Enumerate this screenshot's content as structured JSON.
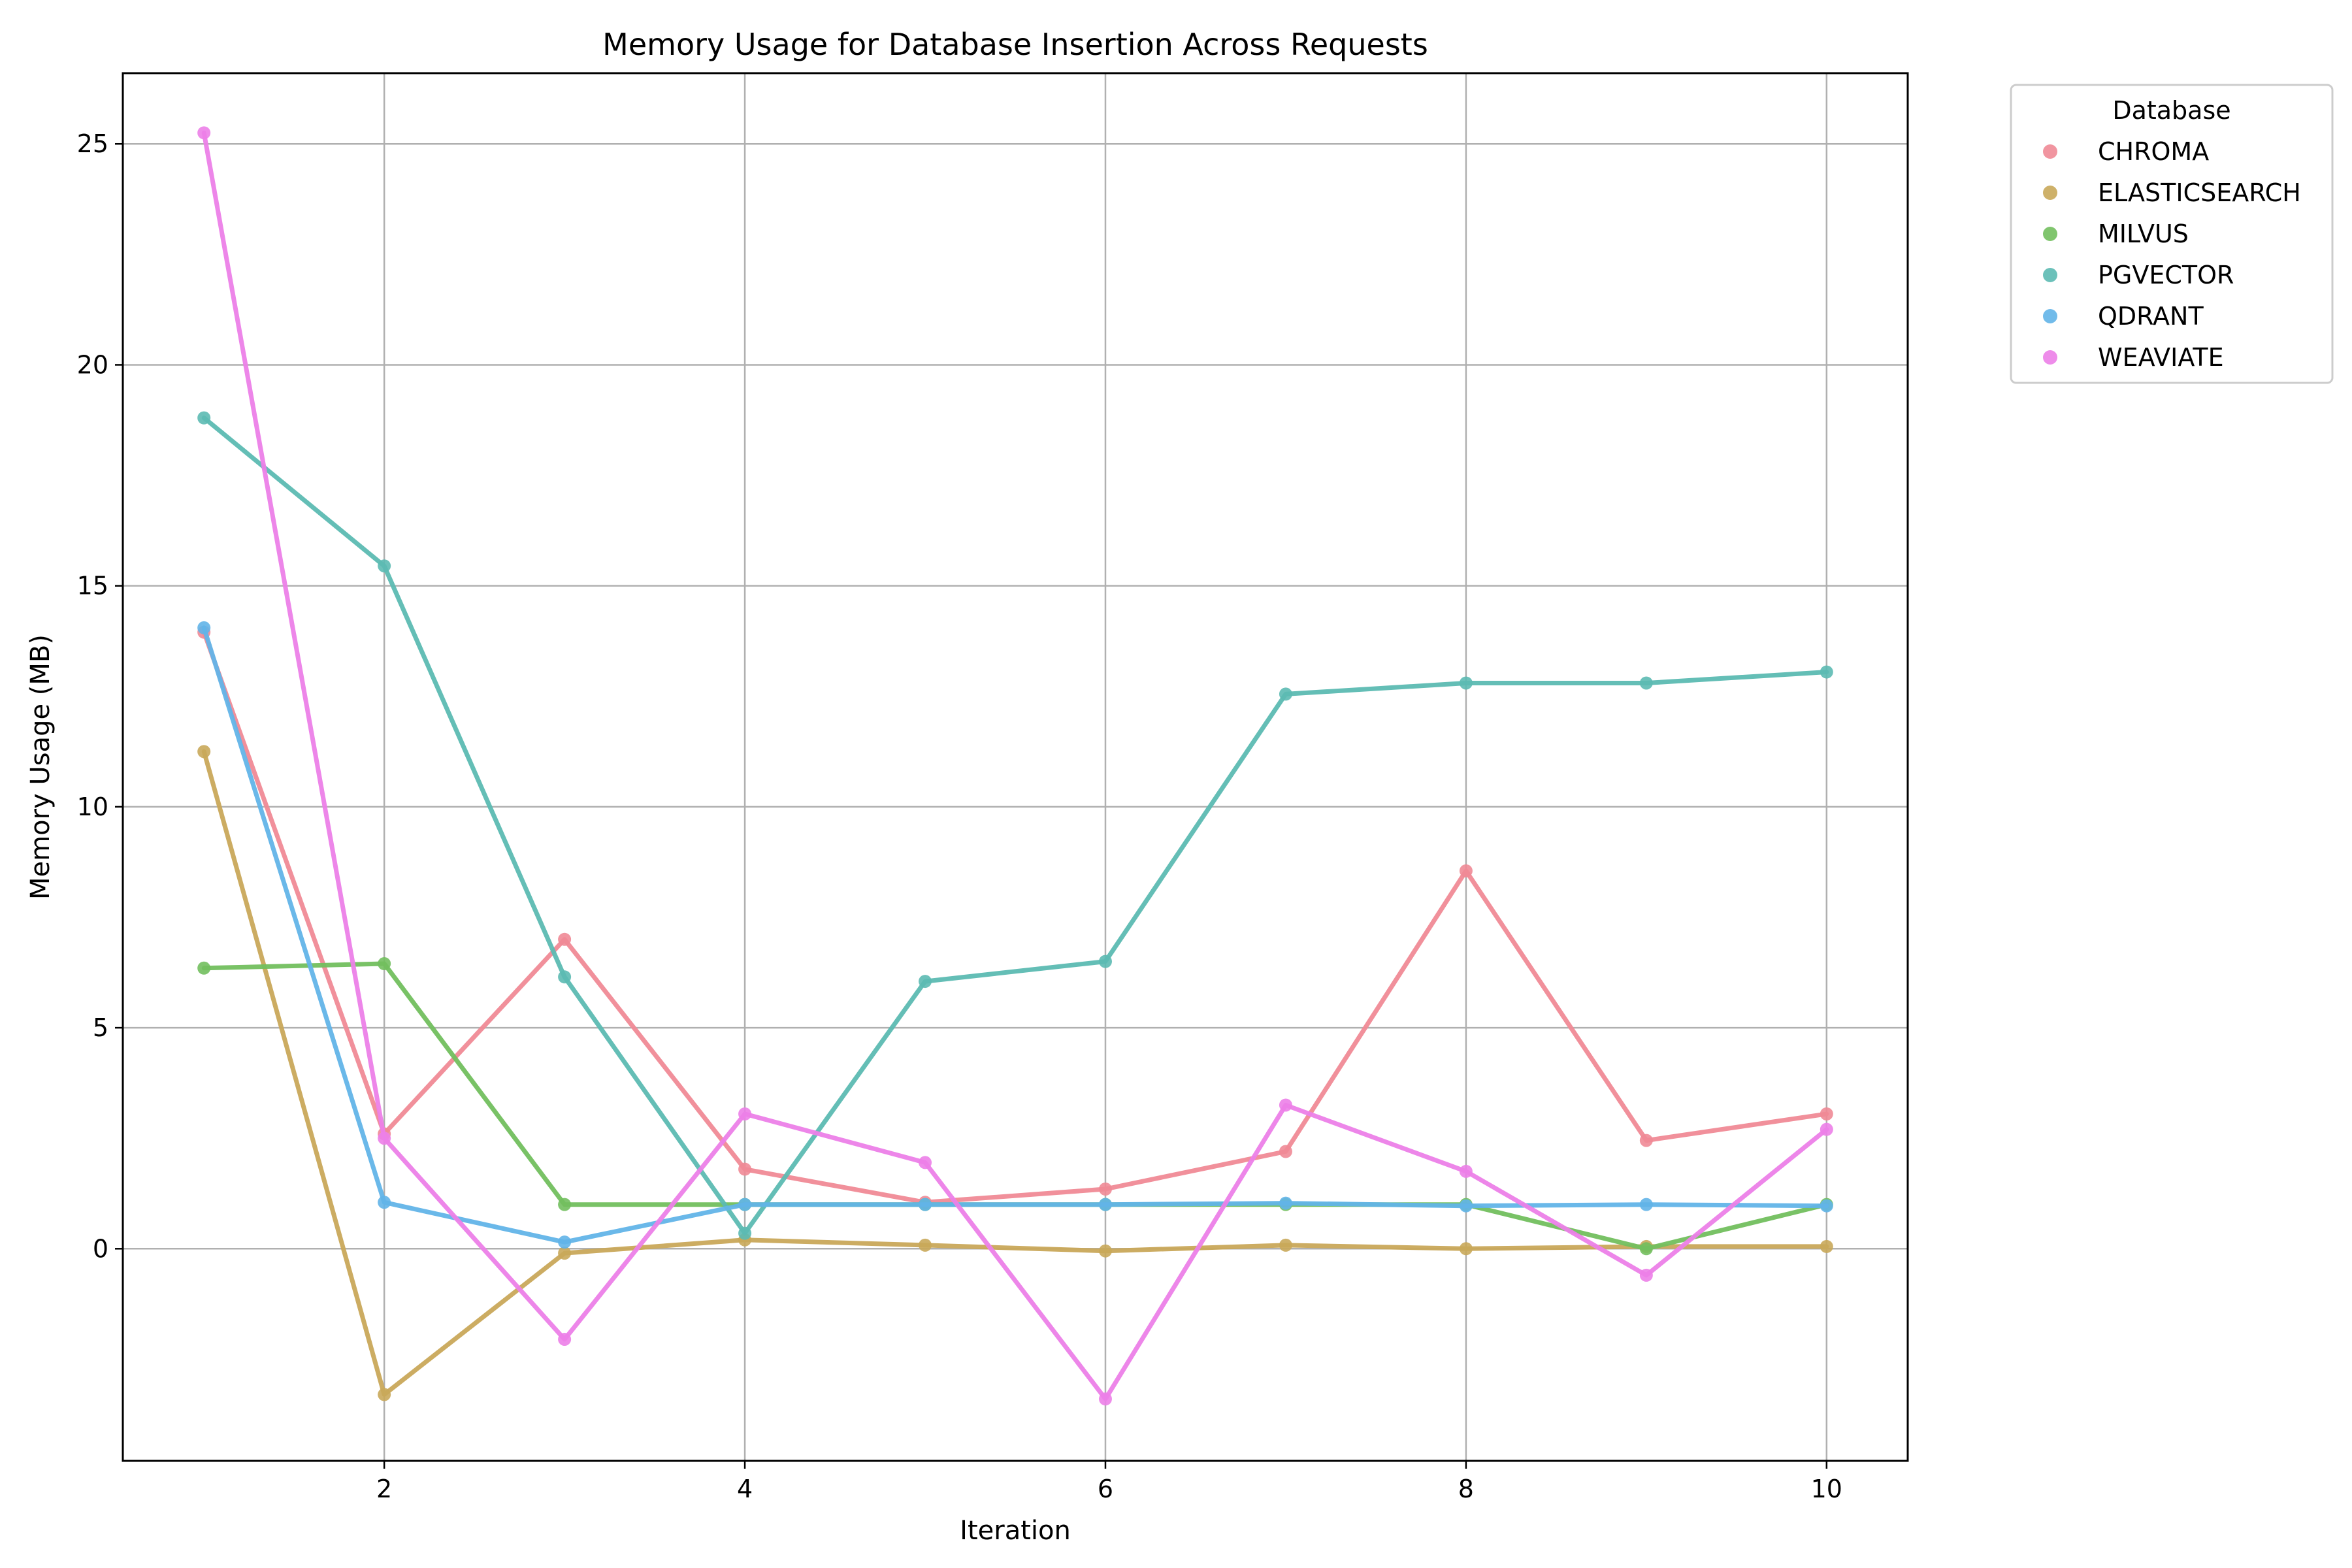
{
  "chart_data": {
    "type": "line",
    "title": "Memory Usage for Database Insertion Across Requests",
    "xlabel": "Iteration",
    "ylabel": "Memory Usage (MB)",
    "xlim": [
      0.55,
      10.45
    ],
    "ylim": [
      -4.8,
      26.6
    ],
    "xticks": [
      2,
      4,
      6,
      8,
      10
    ],
    "yticks": [
      0,
      5,
      10,
      15,
      20,
      25
    ],
    "grid": true,
    "legend": {
      "title": "Database",
      "placement": "outside upper right"
    },
    "x": [
      1,
      2,
      3,
      4,
      5,
      6,
      7,
      8,
      9,
      10
    ],
    "series": [
      {
        "name": "CHROMA",
        "color": "#f08a96",
        "values": [
          13.95,
          2.6,
          7.0,
          1.8,
          1.05,
          1.35,
          2.2,
          8.55,
          2.45,
          3.05
        ]
      },
      {
        "name": "ELASTICSEARCH",
        "color": "#c9a85a",
        "values": [
          11.25,
          -3.3,
          -0.1,
          0.2,
          0.08,
          -0.05,
          0.08,
          0.0,
          0.05,
          0.05
        ]
      },
      {
        "name": "MILVUS",
        "color": "#72bf5e",
        "values": [
          6.35,
          6.45,
          1.0,
          1.0,
          1.0,
          1.0,
          1.0,
          1.0,
          0.0,
          1.0
        ]
      },
      {
        "name": "PGVECTOR",
        "color": "#5cbab2",
        "values": [
          18.8,
          15.45,
          6.15,
          0.35,
          6.05,
          6.5,
          12.55,
          12.8,
          12.8,
          13.05
        ]
      },
      {
        "name": "QDRANT",
        "color": "#62b4e8",
        "values": [
          14.05,
          1.05,
          0.15,
          1.0,
          1.0,
          1.0,
          1.03,
          0.97,
          1.0,
          0.97
        ]
      },
      {
        "name": "WEAVIATE",
        "color": "#ec7fe8",
        "values": [
          25.25,
          2.5,
          -2.05,
          3.05,
          1.95,
          -3.4,
          3.25,
          1.75,
          -0.6,
          2.7
        ]
      }
    ]
  }
}
